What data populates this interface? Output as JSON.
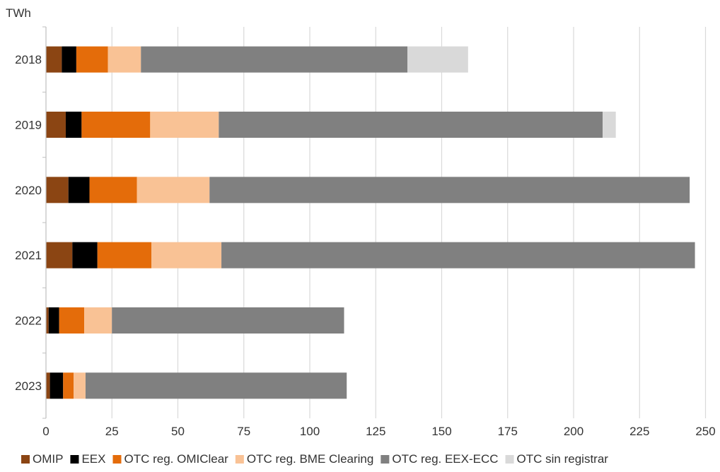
{
  "chart_data": {
    "type": "bar",
    "orientation": "horizontal",
    "stacked": true,
    "unit_label": "TWh",
    "categories": [
      "2018",
      "2019",
      "2020",
      "2021",
      "2022",
      "2023"
    ],
    "x_ticks": [
      0,
      25,
      50,
      75,
      100,
      125,
      150,
      175,
      200,
      225,
      250
    ],
    "xlim": [
      0,
      255
    ],
    "grid": true,
    "legend_position": "bottom",
    "series": [
      {
        "name": "OMIP",
        "color": "#8B4513",
        "values": [
          6,
          7.5,
          8.5,
          10,
          1,
          1.5
        ]
      },
      {
        "name": "EEX",
        "color": "#000000",
        "values": [
          5.5,
          6,
          8,
          9.5,
          4,
          5
        ]
      },
      {
        "name": "OTC reg. OMIClear",
        "color": "#E46C0A",
        "values": [
          12,
          26,
          18,
          20.5,
          9.5,
          4
        ]
      },
      {
        "name": "OTC reg. BME Clearing",
        "color": "#F9C295",
        "values": [
          12.5,
          26,
          27.5,
          26.5,
          10.5,
          4.5
        ]
      },
      {
        "name": "OTC reg. EEX-ECC",
        "color": "#808080",
        "values": [
          101,
          145.5,
          182,
          179.5,
          88,
          99
        ]
      },
      {
        "name": "OTC sin registrar",
        "color": "#D9D9D9",
        "values": [
          23,
          5,
          0,
          0,
          0,
          0
        ]
      }
    ]
  }
}
